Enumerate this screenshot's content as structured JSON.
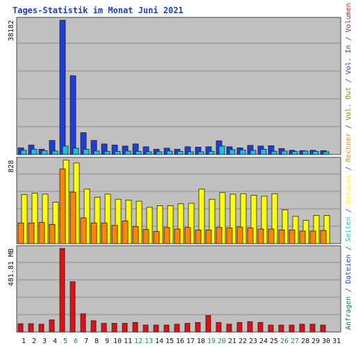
{
  "chart_data": {
    "title": "Tages-Statistik im Monat Juni 2021",
    "type": "bar",
    "colors": {
      "background": "#c0c0c0",
      "frame": "#444444",
      "grid": "#8c8c8c",
      "anfragen": "#00805c",
      "dateien": "#1f3dd8",
      "seiten": "#18c0e8",
      "besuche": "#ffff00",
      "rechner": "#ff8400",
      "vol_out": "#8a8a00",
      "vol_in": "#2040d0",
      "volumen": "#e01010",
      "weekend": "#1a8a5a",
      "weekday": "#111111",
      "title": "#1a3fb8"
    },
    "x_ticks": [
      "1",
      "2",
      "3",
      "4",
      "5",
      "6",
      "7",
      "8",
      "9",
      "10",
      "11",
      "12",
      "13",
      "14",
      "15",
      "16",
      "17",
      "18",
      "19",
      "20",
      "21",
      "22",
      "23",
      "24",
      "25",
      "26",
      "27",
      "28",
      "29",
      "30",
      "31"
    ],
    "weekend_days": [
      "5",
      "6",
      "12",
      "13",
      "19",
      "20",
      "26",
      "27"
    ],
    "panels": [
      {
        "ylabel": "38182",
        "ymax": 38182,
        "series": [
          {
            "name": "Dateien",
            "values": [
              1900,
              2700,
              1500,
              4000,
              38182,
              22400,
              6200,
              4000,
              3000,
              2700,
              2400,
              3000,
              2200,
              1500,
              1800,
              1500,
              2200,
              2100,
              2200,
              3900,
              2200,
              1900,
              2600,
              2400,
              2500,
              1700,
              1200,
              1100,
              1200,
              1100
            ]
          },
          {
            "name": "Seiten",
            "values": [
              1200,
              1500,
              1100,
              1000,
              2400,
              1800,
              1500,
              1000,
              900,
              900,
              1000,
              900,
              800,
              800,
              1000,
              900,
              800,
              800,
              900,
              2400,
              1400,
              1300,
              1200,
              1500,
              900,
              1000,
              900,
              1000,
              900,
              800
            ]
          }
        ]
      },
      {
        "ylabel": "828",
        "ymax": 828,
        "series": [
          {
            "name": "Besuche",
            "values": [
              485,
              500,
              490,
              410,
              828,
              800,
              540,
              460,
              490,
              440,
              430,
              420,
              360,
              375,
              375,
              395,
              400,
              540,
              440,
              505,
              490,
              495,
              480,
              470,
              495,
              335,
              270,
              230,
              280,
              280
            ]
          },
          {
            "name": "Rechner",
            "values": [
              205,
              205,
              210,
              190,
              740,
              510,
              255,
              205,
              205,
              180,
              225,
              170,
              140,
              120,
              160,
              145,
              160,
              135,
              135,
              160,
              155,
              165,
              155,
              145,
              145,
              135,
              135,
              125,
              125,
              130
            ]
          }
        ]
      },
      {
        "ylabel": "481.81 MB",
        "ymax": 481.81,
        "series": [
          {
            "name": "Volumen",
            "values": [
              48,
              48,
              45,
              70,
              481.81,
              290,
              105,
              65,
              50,
              50,
              50,
              55,
              40,
              40,
              40,
              45,
              50,
              55,
              95,
              55,
              45,
              55,
              60,
              55,
              40,
              40,
              40,
              45,
              45,
              40
            ]
          }
        ]
      }
    ],
    "right_legend": [
      {
        "text": "Anfragen",
        "key": "anfragen"
      },
      {
        "text": " / ",
        "key": "frame"
      },
      {
        "text": "Dateien",
        "key": "dateien"
      },
      {
        "text": " / ",
        "key": "frame"
      },
      {
        "text": "Seiten",
        "key": "seiten"
      },
      {
        "text": " / ",
        "key": "frame"
      },
      {
        "text": "Besuche",
        "key": "besuche"
      },
      {
        "text": " / ",
        "key": "frame"
      },
      {
        "text": "Rechner",
        "key": "rechner"
      },
      {
        "text": " / ",
        "key": "frame"
      },
      {
        "text": "Vol. Out",
        "key": "vol_out"
      },
      {
        "text": " / ",
        "key": "frame"
      },
      {
        "text": "Vol. In",
        "key": "vol_in"
      },
      {
        "text": " / ",
        "key": "frame"
      },
      {
        "text": "Volumen",
        "key": "volumen"
      }
    ]
  }
}
